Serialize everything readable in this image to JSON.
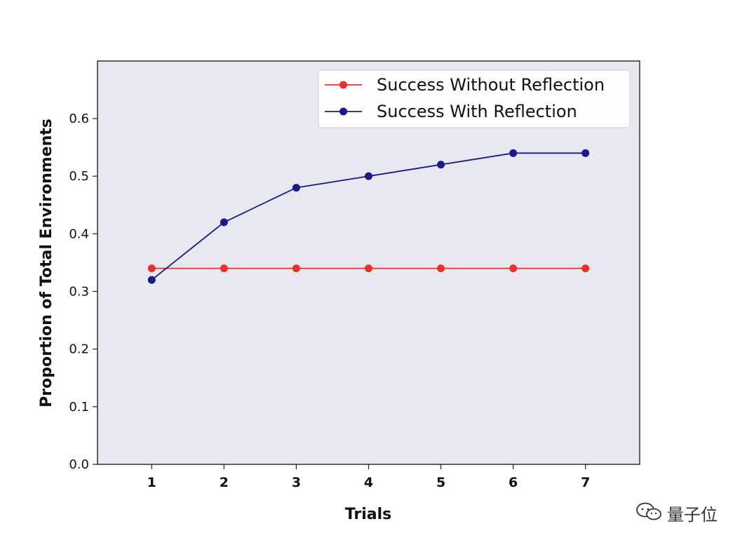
{
  "chart_data": {
    "type": "line",
    "title": "",
    "xlabel": "Trials",
    "ylabel": "Proportion of Total Environments",
    "x": [
      1,
      2,
      3,
      4,
      5,
      6,
      7
    ],
    "xlim": [
      0.25,
      7.75
    ],
    "ylim": [
      0,
      0.6
    ],
    "yticks": [
      "0.0",
      "0.1",
      "0.2",
      "0.3",
      "0.4",
      "0.5",
      "0.6"
    ],
    "grid": false,
    "legend_position": "top-right",
    "background": "#e8e8f1",
    "series": [
      {
        "name": "Success Without Reflection",
        "color": "#e8312b",
        "values": [
          0.34,
          0.34,
          0.34,
          0.34,
          0.34,
          0.34,
          0.34
        ]
      },
      {
        "name": "Success With Reflection",
        "color": "#1a1a8c",
        "values": [
          0.32,
          0.42,
          0.48,
          0.5,
          0.52,
          0.54,
          0.54
        ]
      }
    ]
  },
  "watermark": {
    "text": "量子位",
    "icon": "wechat-icon"
  }
}
